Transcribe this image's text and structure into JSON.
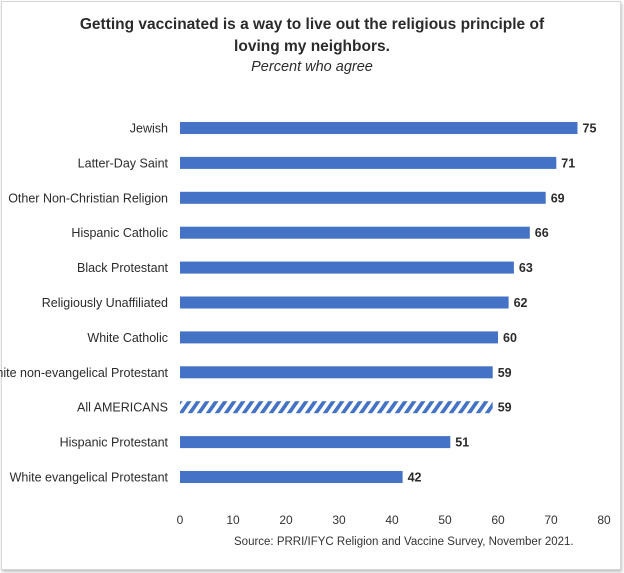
{
  "chart_data": {
    "type": "bar",
    "orientation": "horizontal",
    "title_line1": "Getting vaccinated is a way to live out the religious principle of",
    "title_line2": "loving my neighbors.",
    "subtitle": "Percent who agree",
    "categories": [
      "Jewish",
      "Latter-Day Saint",
      "Other Non-Christian Religion",
      "Hispanic Catholic",
      "Black Protestant",
      "Religiously Unaffiliated",
      "White Catholic",
      "White non-evangelical Protestant",
      "All AMERICANS",
      "Hispanic Protestant",
      "White evangelical Protestant"
    ],
    "values": [
      75,
      71,
      69,
      66,
      63,
      62,
      60,
      59,
      59,
      51,
      42
    ],
    "highlighted_category": "All AMERICANS",
    "highlight_style": "diagonal-hatch",
    "xlim": [
      0,
      80
    ],
    "xticks": [
      0,
      10,
      20,
      30,
      40,
      50,
      60,
      70,
      80
    ],
    "bar_color": "#4472C4",
    "grid": false,
    "legend": "none",
    "source": "Source: PRRI/IFYC Religion and Vaccine Survey, November 2021."
  }
}
